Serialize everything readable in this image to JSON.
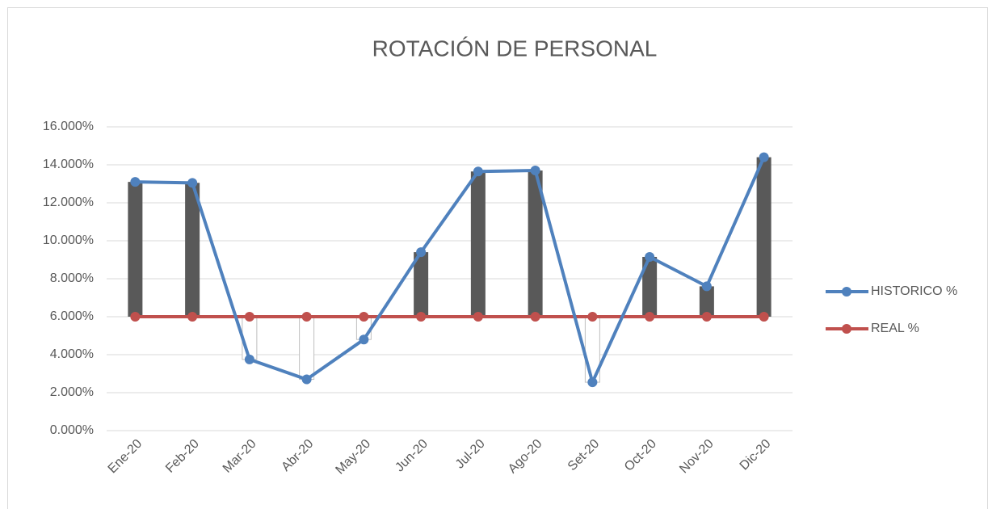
{
  "chart_data": {
    "type": "line",
    "title": "ROTACIÓN DE PERSONAL",
    "categories": [
      "Ene-20",
      "Feb-20",
      "Mar-20",
      "Abr-20",
      "May-20",
      "Jun-20",
      "Jul-20",
      "Ago-20",
      "Set-20",
      "Oct-20",
      "Nov-20",
      "Dic-20"
    ],
    "series": [
      {
        "name": "HISTORICO %",
        "color": "#4f81bd",
        "values": [
          13.1,
          13.05,
          3.75,
          2.7,
          4.8,
          9.4,
          13.65,
          13.7,
          2.55,
          9.15,
          7.6,
          14.4
        ]
      },
      {
        "name": "REAL %",
        "color": "#c0504d",
        "values": [
          6,
          6,
          6,
          6,
          6,
          6,
          6,
          6,
          6,
          6,
          6,
          6
        ]
      }
    ],
    "up_bar_color": "#595959",
    "down_bar_color": "#ffffff",
    "ylim": [
      0,
      16
    ],
    "yticks": [
      {
        "value": 0,
        "label": "0.000%"
      },
      {
        "value": 2,
        "label": "2.000%"
      },
      {
        "value": 4,
        "label": "4.000%"
      },
      {
        "value": 6,
        "label": "6.000%"
      },
      {
        "value": 8,
        "label": "8.000%"
      },
      {
        "value": 10,
        "label": "10.000%"
      },
      {
        "value": 12,
        "label": "12.000%"
      },
      {
        "value": 14,
        "label": "14.000%"
      },
      {
        "value": 16,
        "label": "16.000%"
      }
    ],
    "grid": true,
    "legend": "right"
  }
}
